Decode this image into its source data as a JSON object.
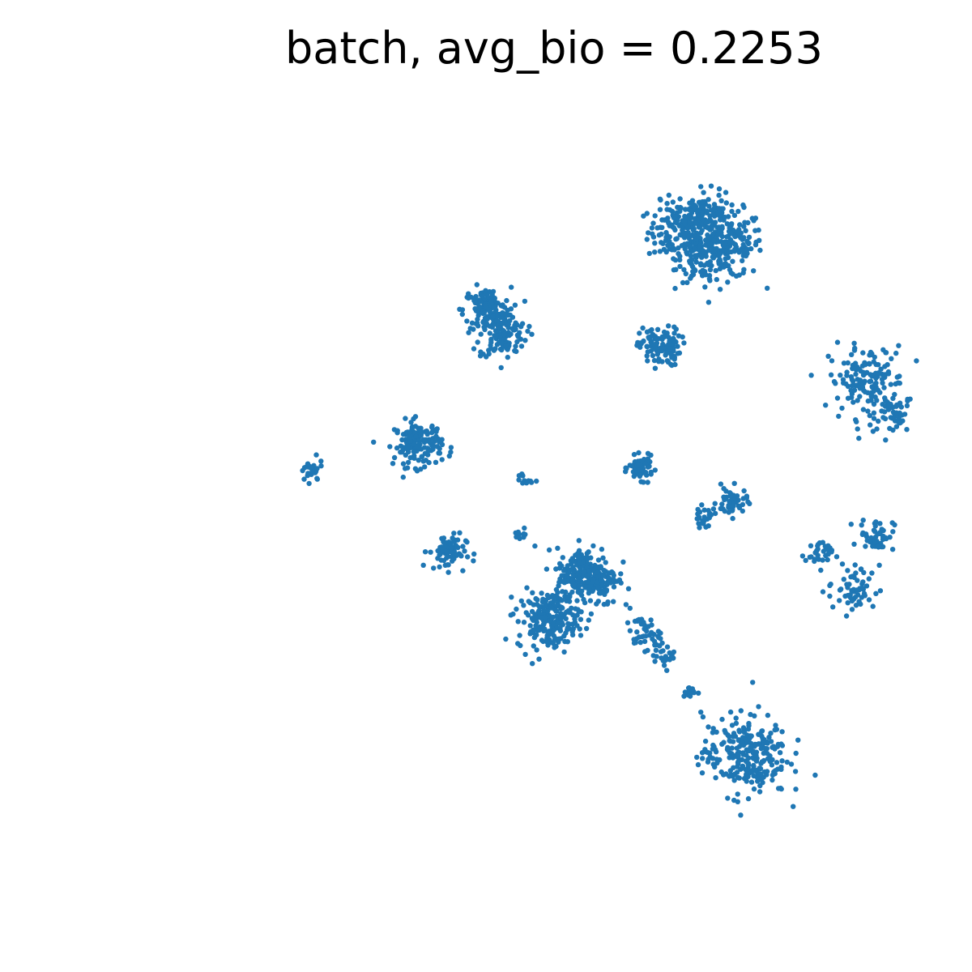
{
  "chart_data": {
    "type": "scatter",
    "title": "batch, avg_bio = 0.2253",
    "xlabel": "",
    "ylabel": "",
    "axes_visible": false,
    "grid": false,
    "xlim": [
      0,
      1
    ],
    "ylim": [
      0,
      1
    ],
    "point_color": "#1f77b4",
    "series": [
      {
        "clusters": [
          {
            "x": 0.655,
            "y": 0.844,
            "spread": 0.018,
            "n": 140
          },
          {
            "x": 0.682,
            "y": 0.868,
            "spread": 0.014,
            "n": 110
          },
          {
            "x": 0.712,
            "y": 0.828,
            "spread": 0.021,
            "n": 180
          },
          {
            "x": 0.685,
            "y": 0.812,
            "spread": 0.015,
            "n": 90
          },
          {
            "x": 0.43,
            "y": 0.747,
            "spread": 0.014,
            "n": 130
          },
          {
            "x": 0.449,
            "y": 0.716,
            "spread": 0.014,
            "n": 110
          },
          {
            "x": 0.633,
            "y": 0.702,
            "spread": 0.012,
            "n": 110
          },
          {
            "x": 0.877,
            "y": 0.658,
            "spread": 0.022,
            "n": 160
          },
          {
            "x": 0.912,
            "y": 0.615,
            "spread": 0.01,
            "n": 40
          },
          {
            "x": 0.349,
            "y": 0.582,
            "spread": 0.014,
            "n": 150
          },
          {
            "x": 0.611,
            "y": 0.552,
            "spread": 0.007,
            "n": 70
          },
          {
            "x": 0.223,
            "y": 0.548,
            "spread": 0.007,
            "n": 30
          },
          {
            "x": 0.473,
            "y": 0.538,
            "spread": 0.005,
            "n": 12
          },
          {
            "x": 0.718,
            "y": 0.51,
            "spread": 0.009,
            "n": 50
          },
          {
            "x": 0.685,
            "y": 0.491,
            "spread": 0.006,
            "n": 25
          },
          {
            "x": 0.888,
            "y": 0.47,
            "spread": 0.01,
            "n": 50
          },
          {
            "x": 0.383,
            "y": 0.449,
            "spread": 0.011,
            "n": 70
          },
          {
            "x": 0.82,
            "y": 0.446,
            "spread": 0.008,
            "n": 30
          },
          {
            "x": 0.861,
            "y": 0.402,
            "spread": 0.015,
            "n": 60
          },
          {
            "x": 0.547,
            "y": 0.418,
            "spread": 0.018,
            "n": 260
          },
          {
            "x": 0.502,
            "y": 0.365,
            "spread": 0.018,
            "n": 200
          },
          {
            "x": 0.613,
            "y": 0.348,
            "spread": 0.01,
            "n": 40
          },
          {
            "x": 0.64,
            "y": 0.32,
            "spread": 0.007,
            "n": 25
          },
          {
            "x": 0.667,
            "y": 0.276,
            "spread": 0.004,
            "n": 12
          },
          {
            "x": 0.733,
            "y": 0.198,
            "spread": 0.025,
            "n": 260
          },
          {
            "x": 0.471,
            "y": 0.469,
            "spread": 0.004,
            "n": 10
          }
        ]
      }
    ]
  }
}
